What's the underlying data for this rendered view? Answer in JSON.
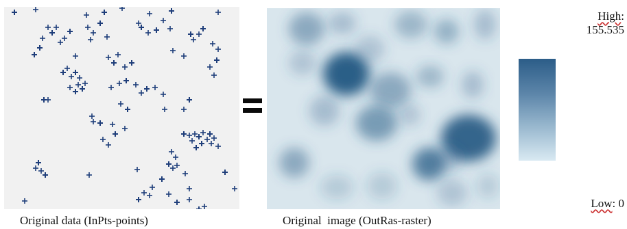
{
  "captions": {
    "left": "Original data (InPts-points)",
    "right": "Original  image (OutRas-raster)"
  },
  "operator": "=",
  "legend": {
    "high_label": "High",
    "high_value": "155.535",
    "low_label": "Low",
    "low_value": "0",
    "colors": {
      "high": "#2c5d88",
      "low": "#d9e9f2"
    }
  },
  "colors": {
    "points": "#1f3e7a",
    "points_background": "#f1f1f1",
    "raster_background": "#d9e6ed",
    "raster_dense": "#2a5e87"
  }
}
